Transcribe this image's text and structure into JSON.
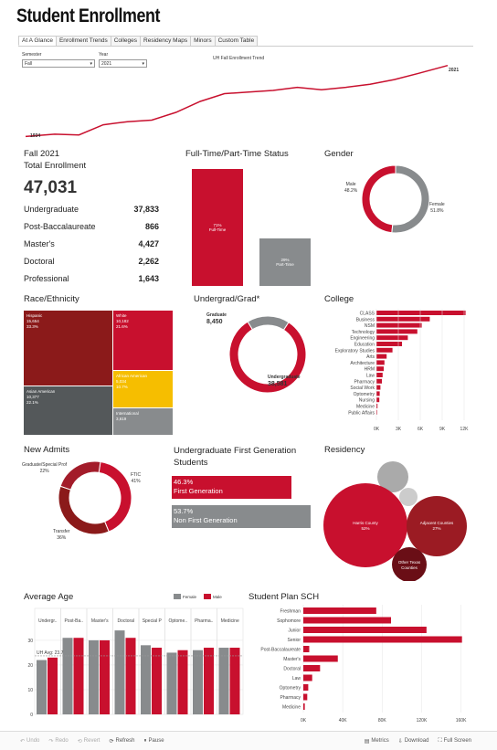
{
  "title": "Student Enrollment",
  "tabs": [
    "At A Glance",
    "Enrollment Trends",
    "Colleges",
    "Residency Maps",
    "Minors",
    "Custom Table"
  ],
  "filters": {
    "semester": {
      "label": "Semester",
      "value": "Fall"
    },
    "year": {
      "label": "Year",
      "value": "2021"
    }
  },
  "colors": {
    "red": "#c8102e",
    "darkred": "#8b1a1a",
    "gray": "#888b8d",
    "darkgray": "#54585a",
    "gold": "#f6be00"
  },
  "trend": {
    "title": "UH Fall Enrollment Trend",
    "start_label": "1934",
    "end_label": "2021"
  },
  "total": {
    "term": "Fall 2021",
    "label": "Total Enrollment",
    "value": "47,031",
    "rows": [
      {
        "label": "Undergraduate",
        "value": "37,833"
      },
      {
        "label": "Post-Baccalaureate",
        "value": "866"
      },
      {
        "label": "Master's",
        "value": "4,427"
      },
      {
        "label": "Doctoral",
        "value": "2,262"
      },
      {
        "label": "Professional",
        "value": "1,643"
      }
    ]
  },
  "ftpt": {
    "title": "Full-Time/Part-Time Status",
    "ft_pct": "71%",
    "ft_label": "Full-Time",
    "pt_pct": "29%",
    "pt_label": "Part-Time"
  },
  "gender": {
    "title": "Gender",
    "male_label": "Male",
    "male_pct": "48.2%",
    "female_label": "Female",
    "female_pct": "51.8%"
  },
  "race": {
    "title": "Race/Ethnicity",
    "cells": [
      {
        "name": "Hispanic",
        "count": "15,654",
        "pct": "33.3%"
      },
      {
        "name": "White",
        "count": "10,182",
        "pct": "21.6%"
      },
      {
        "name": "Asian American",
        "count": "10,377",
        "pct": "22.1%"
      },
      {
        "name": "African American",
        "count": "5,034",
        "pct": "10.7%"
      },
      {
        "name": "International",
        "count": "3,619",
        "pct": ""
      }
    ]
  },
  "ugg": {
    "title": "Undergrad/Grad*",
    "grad_label": "Graduate",
    "grad_value": "8,450",
    "ug_label": "Undergraduate",
    "ug_value": "38,581"
  },
  "college": {
    "title": "College",
    "axis": [
      "0K",
      "3K",
      "6K",
      "9K",
      "12K"
    ]
  },
  "admits": {
    "title": "New Admits",
    "grad_label": "Graduate/Special Prof",
    "grad_pct": "22%",
    "ftic_label": "FTIC",
    "ftic_pct": "41%",
    "transfer_label": "Transfer",
    "transfer_pct": "36%"
  },
  "firstgen": {
    "title": "Undergraduate First Generation Students",
    "fg_pct": "46.3%",
    "fg_label": "First Generation",
    "nfg_pct": "53.7%",
    "nfg_label": "Non First Generation"
  },
  "residency": {
    "title": "Residency",
    "harris_label": "Harris County",
    "harris_pct": "52%",
    "adj_label": "Adjacent Counties",
    "adj_pct": "27%",
    "other_label": "Other Texas Counties"
  },
  "age": {
    "title": "Average Age",
    "legend_female": "Female",
    "legend_male": "Male",
    "avg_label": "UH Avg: 23.7",
    "axis": [
      "0",
      "10",
      "20",
      "30"
    ]
  },
  "sch": {
    "title": "Student Plan SCH",
    "axis": [
      "0K",
      "40K",
      "80K",
      "120K",
      "160K"
    ]
  },
  "footer": {
    "undo": "Undo",
    "redo": "Redo",
    "revert": "Revert",
    "refresh": "Refresh",
    "pause": "Pause",
    "metrics": "Metrics",
    "download": "Download",
    "fullscreen": "Full Screen"
  },
  "chart_data": [
    {
      "type": "line",
      "title": "UH Fall Enrollment Trend",
      "x": [
        1934,
        1940,
        1945,
        1950,
        1955,
        1960,
        1965,
        1970,
        1975,
        1980,
        1985,
        1990,
        1995,
        2000,
        2005,
        2010,
        2015,
        2021
      ],
      "values": [
        1500,
        3000,
        2500,
        9000,
        11000,
        12000,
        17000,
        24000,
        29000,
        30000,
        31000,
        33000,
        31500,
        33000,
        35000,
        38000,
        42000,
        47031
      ],
      "ylim": [
        0,
        48000
      ]
    },
    {
      "type": "bar",
      "title": "Full-Time/Part-Time Status",
      "categories": [
        "Full-Time",
        "Part-Time"
      ],
      "values": [
        71,
        29
      ]
    },
    {
      "type": "pie",
      "title": "Gender",
      "categories": [
        "Male",
        "Female"
      ],
      "values": [
        48.2,
        51.8
      ]
    },
    {
      "type": "heatmap",
      "title": "Race/Ethnicity",
      "categories": [
        "Hispanic",
        "White",
        "Asian American",
        "African American",
        "International"
      ],
      "values": [
        15654,
        10182,
        10377,
        5034,
        3619
      ]
    },
    {
      "type": "pie",
      "title": "Undergrad/Grad*",
      "categories": [
        "Graduate",
        "Undergraduate"
      ],
      "values": [
        8450,
        38581
      ]
    },
    {
      "type": "bar",
      "title": "College",
      "categories": [
        "CLASS",
        "Business",
        "NSM",
        "Technology",
        "Engineering",
        "Education",
        "Exploratory Studies",
        "Arts",
        "Architecture",
        "HRM",
        "Law",
        "Pharmacy",
        "Social Work",
        "Optometry",
        "Nursing",
        "Medicine",
        "Public Affairs"
      ],
      "values": [
        12200,
        7300,
        6200,
        5600,
        4300,
        3500,
        2200,
        1400,
        1100,
        1000,
        850,
        750,
        550,
        450,
        400,
        150,
        100
      ],
      "xlim": [
        0,
        12500
      ]
    },
    {
      "type": "pie",
      "title": "New Admits",
      "categories": [
        "Graduate/Special Prof",
        "FTIC",
        "Transfer"
      ],
      "values": [
        22,
        41,
        36
      ]
    },
    {
      "type": "bar",
      "title": "Undergraduate First Generation Students",
      "categories": [
        "First Generation",
        "Non First Generation"
      ],
      "values": [
        46.3,
        53.7
      ]
    },
    {
      "type": "scatter",
      "title": "Residency",
      "categories": [
        "Harris County",
        "Adjacent Counties",
        "Other Texas Counties"
      ],
      "values": [
        52,
        27,
        8
      ]
    },
    {
      "type": "bar",
      "title": "Average Age",
      "categories": [
        "Undergr..",
        "Post-Ba..",
        "Master's",
        "Doctoral",
        "Special Profession..",
        "Optome..",
        "Pharma..",
        "Medicine"
      ],
      "series": [
        {
          "name": "Female",
          "values": [
            22,
            31,
            30,
            34,
            28,
            25,
            26,
            27
          ]
        },
        {
          "name": "Male",
          "values": [
            23,
            31,
            30,
            31,
            27,
            26,
            27,
            27
          ]
        }
      ],
      "ylim": [
        0,
        37
      ]
    },
    {
      "type": "bar",
      "title": "Student Plan SCH",
      "categories": [
        "Freshman",
        "Sophomore",
        "Junior",
        "Senior",
        "Post-Baccalaureate",
        "Master's",
        "Doctoral",
        "Law",
        "Optometry",
        "Pharmacy",
        "Medicine"
      ],
      "values": [
        74000,
        89000,
        125000,
        161000,
        6000,
        35000,
        17000,
        9000,
        5000,
        4000,
        1500
      ],
      "xlim": [
        0,
        165000
      ]
    }
  ]
}
